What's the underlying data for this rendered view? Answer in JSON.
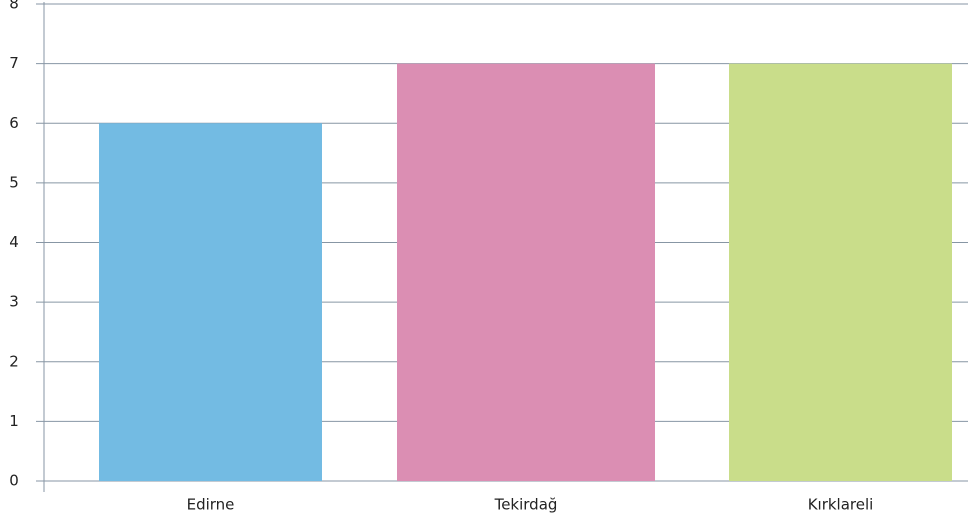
{
  "chart_data": {
    "type": "bar",
    "categories": [
      "Edirne",
      "Tekirdağ",
      "Kırklareli"
    ],
    "values": [
      6,
      7,
      7
    ],
    "colors": [
      "#73bbe3",
      "#db8eb3",
      "#c9dd8a"
    ],
    "ylim": [
      0,
      8
    ],
    "yticks": [
      0,
      1,
      2,
      3,
      4,
      5,
      6,
      7,
      8
    ],
    "grid": true
  }
}
